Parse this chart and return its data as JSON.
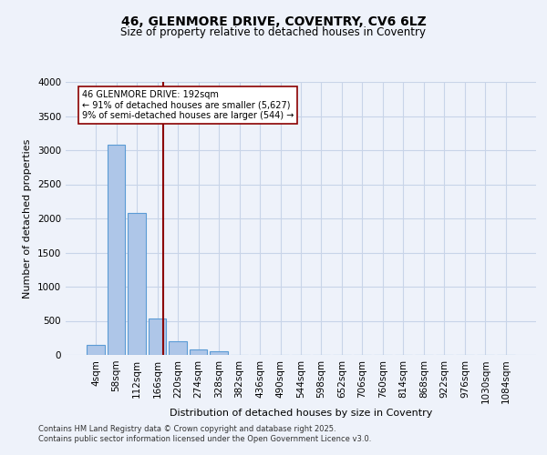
{
  "title_line1": "46, GLENMORE DRIVE, COVENTRY, CV6 6LZ",
  "title_line2": "Size of property relative to detached houses in Coventry",
  "xlabel": "Distribution of detached houses by size in Coventry",
  "ylabel": "Number of detached properties",
  "footnote_line1": "Contains HM Land Registry data © Crown copyright and database right 2025.",
  "footnote_line2": "Contains public sector information licensed under the Open Government Licence v3.0.",
  "bin_labels": [
    "4sqm",
    "58sqm",
    "112sqm",
    "166sqm",
    "220sqm",
    "274sqm",
    "328sqm",
    "382sqm",
    "436sqm",
    "490sqm",
    "544sqm",
    "598sqm",
    "652sqm",
    "706sqm",
    "760sqm",
    "814sqm",
    "868sqm",
    "922sqm",
    "976sqm",
    "1030sqm",
    "1084sqm"
  ],
  "bar_values": [
    150,
    3080,
    2080,
    530,
    200,
    80,
    50,
    0,
    0,
    0,
    0,
    0,
    0,
    0,
    0,
    0,
    0,
    0,
    0,
    0,
    0
  ],
  "bar_color": "#aec6e8",
  "bar_edge_color": "#5b9bd5",
  "bar_edge_width": 0.8,
  "grid_color": "#c8d4e8",
  "background_color": "#eef2fa",
  "ylim": [
    0,
    4000
  ],
  "yticks": [
    0,
    500,
    1000,
    1500,
    2000,
    2500,
    3000,
    3500,
    4000
  ],
  "property_line_x": 3.27,
  "property_line_color": "#8b0000",
  "annotation_text": "46 GLENMORE DRIVE: 192sqm\n← 91% of detached houses are smaller (5,627)\n9% of semi-detached houses are larger (544) →",
  "annotation_box_color": "#ffffff",
  "annotation_box_edge_color": "#8b0000",
  "annotation_fontsize": 7.0,
  "title_fontsize": 10,
  "subtitle_fontsize": 8.5,
  "xlabel_fontsize": 8,
  "ylabel_fontsize": 8,
  "tick_fontsize": 7.5,
  "footnote_fontsize": 6.0
}
